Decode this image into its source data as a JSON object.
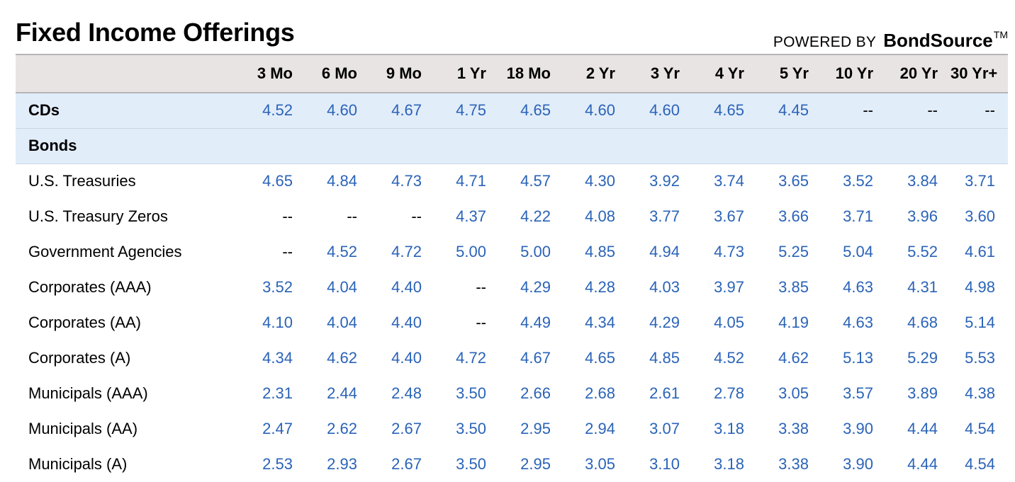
{
  "header": {
    "title": "Fixed Income Offerings",
    "powered_by": "POWERED BY",
    "brand": "BondSource",
    "brand_tm": "TM"
  },
  "columns": [
    "3 Mo",
    "6 Mo",
    "9 Mo",
    "1 Yr",
    "18 Mo",
    "2 Yr",
    "3 Yr",
    "4 Yr",
    "5 Yr",
    "10 Yr",
    "20 Yr",
    "30 Yr+"
  ],
  "rows": [
    {
      "label": "CDs",
      "type": "category",
      "values": [
        "4.52",
        "4.60",
        "4.67",
        "4.75",
        "4.65",
        "4.60",
        "4.60",
        "4.65",
        "4.45",
        "--",
        "--",
        "--"
      ]
    },
    {
      "label": "Bonds",
      "type": "section",
      "values": []
    },
    {
      "label": "U.S. Treasuries",
      "type": "data",
      "values": [
        "4.65",
        "4.84",
        "4.73",
        "4.71",
        "4.57",
        "4.30",
        "3.92",
        "3.74",
        "3.65",
        "3.52",
        "3.84",
        "3.71"
      ]
    },
    {
      "label": "U.S. Treasury Zeros",
      "type": "data",
      "values": [
        "--",
        "--",
        "--",
        "4.37",
        "4.22",
        "4.08",
        "3.77",
        "3.67",
        "3.66",
        "3.71",
        "3.96",
        "3.60"
      ]
    },
    {
      "label": "Government Agencies",
      "type": "data",
      "values": [
        "--",
        "4.52",
        "4.72",
        "5.00",
        "5.00",
        "4.85",
        "4.94",
        "4.73",
        "5.25",
        "5.04",
        "5.52",
        "4.61"
      ]
    },
    {
      "label": "Corporates (AAA)",
      "type": "data",
      "values": [
        "3.52",
        "4.04",
        "4.40",
        "--",
        "4.29",
        "4.28",
        "4.03",
        "3.97",
        "3.85",
        "4.63",
        "4.31",
        "4.98"
      ]
    },
    {
      "label": "Corporates (AA)",
      "type": "data",
      "values": [
        "4.10",
        "4.04",
        "4.40",
        "--",
        "4.49",
        "4.34",
        "4.29",
        "4.05",
        "4.19",
        "4.63",
        "4.68",
        "5.14"
      ]
    },
    {
      "label": "Corporates (A)",
      "type": "data",
      "values": [
        "4.34",
        "4.62",
        "4.40",
        "4.72",
        "4.67",
        "4.65",
        "4.85",
        "4.52",
        "4.62",
        "5.13",
        "5.29",
        "5.53"
      ]
    },
    {
      "label": "Municipals (AAA)",
      "type": "data",
      "values": [
        "2.31",
        "2.44",
        "2.48",
        "3.50",
        "2.66",
        "2.68",
        "2.61",
        "2.78",
        "3.05",
        "3.57",
        "3.89",
        "4.38"
      ]
    },
    {
      "label": "Municipals (AA)",
      "type": "data",
      "values": [
        "2.47",
        "2.62",
        "2.67",
        "3.50",
        "2.95",
        "2.94",
        "3.07",
        "3.18",
        "3.38",
        "3.90",
        "4.44",
        "4.54"
      ]
    },
    {
      "label": "Municipals (A)",
      "type": "data",
      "values": [
        "2.53",
        "2.93",
        "2.67",
        "3.50",
        "2.95",
        "3.05",
        "3.10",
        "3.18",
        "3.38",
        "3.90",
        "4.44",
        "4.54"
      ]
    }
  ],
  "colors": {
    "rate_link": "#2a63b8",
    "header_band": "#e8e4e3",
    "category_band": "#e2edfa"
  }
}
